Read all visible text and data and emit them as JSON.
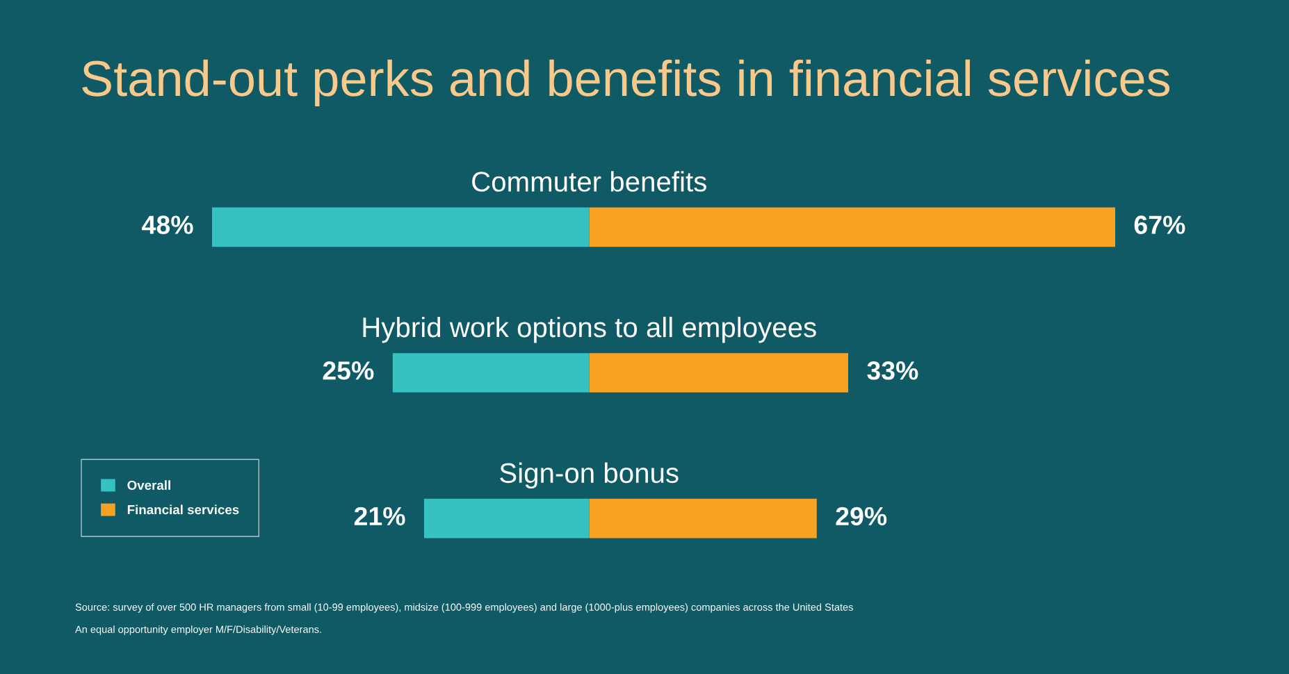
{
  "chart_data": [
    {
      "type": "bar",
      "orientation": "horizontal",
      "title": "Stand-out perks and benefits in financial services",
      "categories": [
        "Commuter benefits",
        "Hybrid work options to all employees",
        "Sign-on bonus"
      ],
      "series": [
        {
          "name": "Overall",
          "color": "#35c2c0",
          "values": [
            48,
            25,
            21
          ],
          "value_labels": [
            "48%",
            "25%",
            "21%"
          ]
        }
      ],
      "xlim": [
        48,
        0
      ],
      "tick_labels": "y",
      "legend": "bottom left",
      "annotations": [
        "Source: survey of over 500 HR managers from small (10-99 employees), midsize (100-999 employees) and large (1000-plus employees) companies across the United States",
        "An equal opportunity employer M/F/Disability/Veterans."
      ]
    },
    {
      "type": "bar",
      "orientation": "horizontal",
      "categories": [
        null,
        null,
        null
      ],
      "series": [
        {
          "name": "Financial services",
          "color": "#f7a223",
          "values": [
            67,
            33,
            29
          ],
          "value_labels": [
            "67%",
            "33%",
            "29%"
          ]
        }
      ],
      "xlim": [
        0,
        67
      ],
      "tick_labels": false,
      "legend": "bottom left"
    }
  ]
}
